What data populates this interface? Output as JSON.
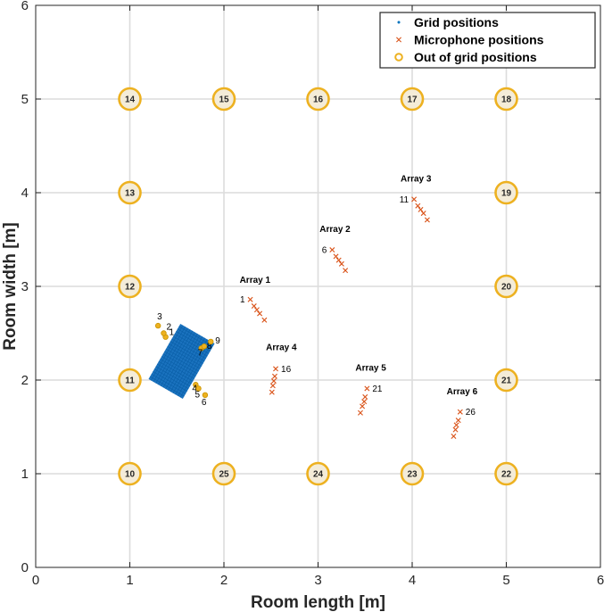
{
  "chart_data": {
    "type": "scatter",
    "xlabel": "Room length [m]",
    "ylabel": "Room width [m]",
    "xlim": [
      0,
      6
    ],
    "ylim": [
      0,
      6
    ],
    "xticks": [
      "0",
      "1",
      "2",
      "3",
      "4",
      "5",
      "6"
    ],
    "yticks": [
      "0",
      "1",
      "2",
      "3",
      "4",
      "5",
      "6"
    ],
    "grid": true,
    "legend_position": "top-right",
    "legend": [
      {
        "label": "Grid positions",
        "marker": "dot",
        "color": "#0072BD"
      },
      {
        "label": "Microphone positions",
        "marker": "x",
        "color": "#D95319"
      },
      {
        "label": "Out of grid positions",
        "marker": "circle",
        "color": "#EDB120"
      }
    ],
    "colors": {
      "grid_block": "#1a72be",
      "microphone": "#D95319",
      "out_of_grid": "#EDB120",
      "out_of_grid_fill": "#f4ecd8"
    },
    "grid_block": {
      "center": [
        1.55,
        2.2
      ],
      "width": 0.42,
      "height": 0.68,
      "rotation_deg": 30
    },
    "out_of_grid_positions": [
      {
        "label": "10",
        "x": 1,
        "y": 1
      },
      {
        "label": "11",
        "x": 1,
        "y": 2
      },
      {
        "label": "12",
        "x": 1,
        "y": 3
      },
      {
        "label": "13",
        "x": 1,
        "y": 4
      },
      {
        "label": "14",
        "x": 1,
        "y": 5
      },
      {
        "label": "15",
        "x": 2,
        "y": 5
      },
      {
        "label": "16",
        "x": 3,
        "y": 5
      },
      {
        "label": "17",
        "x": 4,
        "y": 5
      },
      {
        "label": "18",
        "x": 5,
        "y": 5
      },
      {
        "label": "19",
        "x": 5,
        "y": 4
      },
      {
        "label": "20",
        "x": 5,
        "y": 3
      },
      {
        "label": "21",
        "x": 5,
        "y": 2
      },
      {
        "label": "22",
        "x": 5,
        "y": 1
      },
      {
        "label": "23",
        "x": 4,
        "y": 1
      },
      {
        "label": "24",
        "x": 3,
        "y": 1
      },
      {
        "label": "25",
        "x": 2,
        "y": 1
      }
    ],
    "near_grid_positions": [
      {
        "label": "1",
        "x": 1.38,
        "y": 2.46
      },
      {
        "label": "2",
        "x": 1.36,
        "y": 2.5
      },
      {
        "label": "3",
        "x": 1.3,
        "y": 2.58
      },
      {
        "label": "4",
        "x": 1.7,
        "y": 1.95
      },
      {
        "label": "5",
        "x": 1.73,
        "y": 1.91
      },
      {
        "label": "6",
        "x": 1.8,
        "y": 1.84
      },
      {
        "label": "7",
        "x": 1.76,
        "y": 2.34
      },
      {
        "label": "8",
        "x": 1.79,
        "y": 2.36
      },
      {
        "label": "9",
        "x": 1.86,
        "y": 2.41
      }
    ],
    "arrays": [
      {
        "name": "Array 1",
        "label_pos": [
          2.33,
          3.04
        ],
        "first_label": "1",
        "mics": [
          {
            "x": 2.28,
            "y": 2.86
          },
          {
            "x": 2.32,
            "y": 2.79
          },
          {
            "x": 2.35,
            "y": 2.75
          },
          {
            "x": 2.38,
            "y": 2.71
          },
          {
            "x": 2.43,
            "y": 2.64
          }
        ]
      },
      {
        "name": "Array 2",
        "label_pos": [
          3.18,
          3.58
        ],
        "first_label": "6",
        "mics": [
          {
            "x": 3.15,
            "y": 3.39
          },
          {
            "x": 3.19,
            "y": 3.32
          },
          {
            "x": 3.22,
            "y": 3.28
          },
          {
            "x": 3.25,
            "y": 3.24
          },
          {
            "x": 3.29,
            "y": 3.17
          }
        ]
      },
      {
        "name": "Array 3",
        "label_pos": [
          4.04,
          4.12
        ],
        "first_label": "11",
        "mics": [
          {
            "x": 4.02,
            "y": 3.93
          },
          {
            "x": 4.06,
            "y": 3.86
          },
          {
            "x": 4.09,
            "y": 3.82
          },
          {
            "x": 4.12,
            "y": 3.78
          },
          {
            "x": 4.16,
            "y": 3.71
          }
        ]
      },
      {
        "name": "Array 4",
        "label_pos": [
          2.61,
          2.32
        ],
        "first_label": "16",
        "mics": [
          {
            "x": 2.55,
            "y": 2.12
          },
          {
            "x": 2.54,
            "y": 2.04
          },
          {
            "x": 2.53,
            "y": 1.99
          },
          {
            "x": 2.52,
            "y": 1.94
          },
          {
            "x": 2.51,
            "y": 1.87
          }
        ]
      },
      {
        "name": "Array 5",
        "label_pos": [
          3.56,
          2.1
        ],
        "first_label": "21",
        "mics": [
          {
            "x": 3.52,
            "y": 1.91
          },
          {
            "x": 3.5,
            "y": 1.82
          },
          {
            "x": 3.49,
            "y": 1.77
          },
          {
            "x": 3.47,
            "y": 1.72
          },
          {
            "x": 3.45,
            "y": 1.65
          }
        ]
      },
      {
        "name": "Array 6",
        "label_pos": [
          4.53,
          1.85
        ],
        "first_label": "26",
        "mics": [
          {
            "x": 4.51,
            "y": 1.66
          },
          {
            "x": 4.49,
            "y": 1.57
          },
          {
            "x": 4.47,
            "y": 1.52
          },
          {
            "x": 4.46,
            "y": 1.47
          },
          {
            "x": 4.44,
            "y": 1.4
          }
        ]
      }
    ]
  }
}
